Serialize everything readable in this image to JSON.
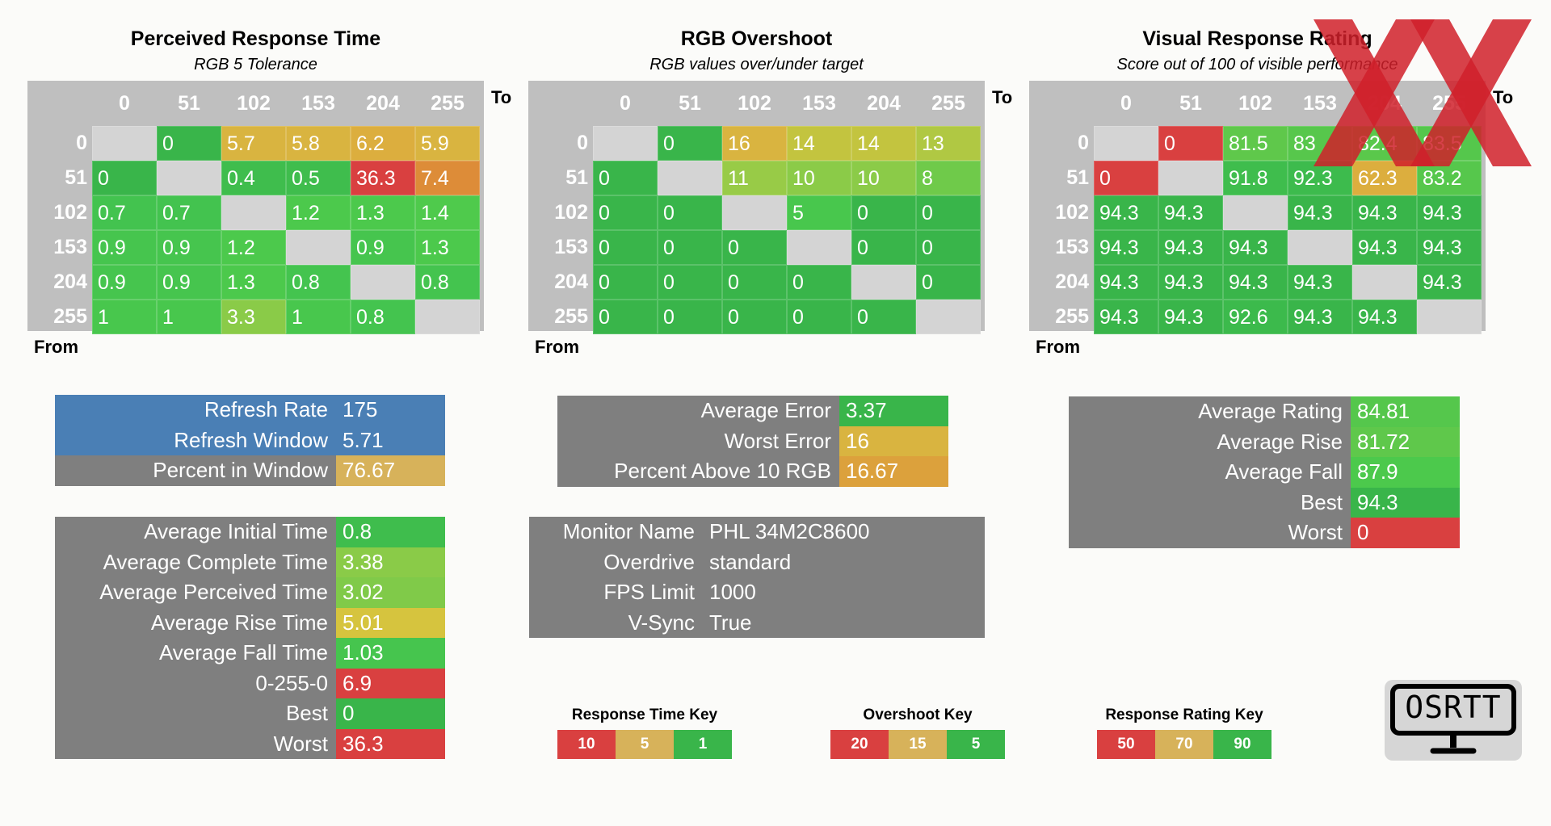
{
  "matrices": [
    {
      "title": "Perceived Response Time",
      "subtitle": "RGB 5 Tolerance",
      "to_label": "To",
      "from_label": "From",
      "headers": [
        "0",
        "51",
        "102",
        "153",
        "204",
        "255"
      ],
      "rows": [
        {
          "label": "0",
          "cells": [
            {
              "v": "",
              "c": "#d4d4d4"
            },
            {
              "v": "0",
              "c": "#39b54a"
            },
            {
              "v": "5.7",
              "c": "#d9b440"
            },
            {
              "v": "5.8",
              "c": "#d9b440"
            },
            {
              "v": "6.2",
              "c": "#dcae3e"
            },
            {
              "v": "5.9",
              "c": "#d9b440"
            }
          ]
        },
        {
          "label": "51",
          "cells": [
            {
              "v": "0",
              "c": "#39b54a"
            },
            {
              "v": "",
              "c": "#d4d4d4"
            },
            {
              "v": "0.4",
              "c": "#3fbd4d"
            },
            {
              "v": "0.5",
              "c": "#3fbd4d"
            },
            {
              "v": "36.3",
              "c": "#d94040"
            },
            {
              "v": "7.4",
              "c": "#dd8c38"
            }
          ]
        },
        {
          "label": "102",
          "cells": [
            {
              "v": "0.7",
              "c": "#43c34f"
            },
            {
              "v": "0.7",
              "c": "#43c34f"
            },
            {
              "v": "",
              "c": "#d4d4d4"
            },
            {
              "v": "1.2",
              "c": "#4cc94c"
            },
            {
              "v": "1.3",
              "c": "#4cc94c"
            },
            {
              "v": "1.4",
              "c": "#4fca4c"
            }
          ]
        },
        {
          "label": "153",
          "cells": [
            {
              "v": "0.9",
              "c": "#46c54e"
            },
            {
              "v": "0.9",
              "c": "#46c54e"
            },
            {
              "v": "1.2",
              "c": "#4cc94c"
            },
            {
              "v": "",
              "c": "#d4d4d4"
            },
            {
              "v": "0.9",
              "c": "#46c54e"
            },
            {
              "v": "1.3",
              "c": "#4cc94c"
            }
          ]
        },
        {
          "label": "204",
          "cells": [
            {
              "v": "0.9",
              "c": "#46c54e"
            },
            {
              "v": "0.9",
              "c": "#46c54e"
            },
            {
              "v": "1.3",
              "c": "#4cc94c"
            },
            {
              "v": "0.8",
              "c": "#44c44f"
            },
            {
              "v": "",
              "c": "#d4d4d4"
            },
            {
              "v": "0.8",
              "c": "#44c44f"
            }
          ]
        },
        {
          "label": "255",
          "cells": [
            {
              "v": "1",
              "c": "#48c74d"
            },
            {
              "v": "1",
              "c": "#48c74d"
            },
            {
              "v": "3.3",
              "c": "#8acb48"
            },
            {
              "v": "1",
              "c": "#48c74d"
            },
            {
              "v": "0.8",
              "c": "#44c44f"
            },
            {
              "v": "",
              "c": "#d4d4d4"
            }
          ]
        }
      ]
    },
    {
      "title": "RGB Overshoot",
      "subtitle": "RGB values over/under target",
      "to_label": "To",
      "from_label": "From",
      "headers": [
        "0",
        "51",
        "102",
        "153",
        "204",
        "255"
      ],
      "rows": [
        {
          "label": "0",
          "cells": [
            {
              "v": "",
              "c": "#d4d4d4"
            },
            {
              "v": "0",
              "c": "#39b54a"
            },
            {
              "v": "16",
              "c": "#d9b440"
            },
            {
              "v": "14",
              "c": "#c3c43f"
            },
            {
              "v": "14",
              "c": "#c3c43f"
            },
            {
              "v": "13",
              "c": "#b0c843"
            }
          ]
        },
        {
          "label": "51",
          "cells": [
            {
              "v": "0",
              "c": "#39b54a"
            },
            {
              "v": "",
              "c": "#d4d4d4"
            },
            {
              "v": "11",
              "c": "#98cb47"
            },
            {
              "v": "10",
              "c": "#8bcb48"
            },
            {
              "v": "10",
              "c": "#8bcb48"
            },
            {
              "v": "8",
              "c": "#6fca4a"
            }
          ]
        },
        {
          "label": "102",
          "cells": [
            {
              "v": "0",
              "c": "#39b54a"
            },
            {
              "v": "0",
              "c": "#39b54a"
            },
            {
              "v": "",
              "c": "#d4d4d4"
            },
            {
              "v": "5",
              "c": "#48c74d"
            },
            {
              "v": "0",
              "c": "#39b54a"
            },
            {
              "v": "0",
              "c": "#39b54a"
            }
          ]
        },
        {
          "label": "153",
          "cells": [
            {
              "v": "0",
              "c": "#39b54a"
            },
            {
              "v": "0",
              "c": "#39b54a"
            },
            {
              "v": "0",
              "c": "#39b54a"
            },
            {
              "v": "",
              "c": "#d4d4d4"
            },
            {
              "v": "0",
              "c": "#39b54a"
            },
            {
              "v": "0",
              "c": "#39b54a"
            }
          ]
        },
        {
          "label": "204",
          "cells": [
            {
              "v": "0",
              "c": "#39b54a"
            },
            {
              "v": "0",
              "c": "#39b54a"
            },
            {
              "v": "0",
              "c": "#39b54a"
            },
            {
              "v": "0",
              "c": "#39b54a"
            },
            {
              "v": "",
              "c": "#d4d4d4"
            },
            {
              "v": "0",
              "c": "#39b54a"
            }
          ]
        },
        {
          "label": "255",
          "cells": [
            {
              "v": "0",
              "c": "#39b54a"
            },
            {
              "v": "0",
              "c": "#39b54a"
            },
            {
              "v": "0",
              "c": "#39b54a"
            },
            {
              "v": "0",
              "c": "#39b54a"
            },
            {
              "v": "0",
              "c": "#39b54a"
            },
            {
              "v": "",
              "c": "#d4d4d4"
            }
          ]
        }
      ]
    },
    {
      "title": "Visual Response Rating",
      "subtitle": "Score out of 100 of visible performance",
      "to_label": "To",
      "from_label": "From",
      "headers": [
        "0",
        "51",
        "102",
        "153",
        "204",
        "255"
      ],
      "rows": [
        {
          "label": "0",
          "cells": [
            {
              "v": "",
              "c": "#d4d4d4"
            },
            {
              "v": "0",
              "c": "#d94040"
            },
            {
              "v": "81.5",
              "c": "#5fc84b"
            },
            {
              "v": "83",
              "c": "#57c74c"
            },
            {
              "v": "82.4",
              "c": "#5ac84b"
            },
            {
              "v": "83.5",
              "c": "#55c74c"
            }
          ]
        },
        {
          "label": "51",
          "cells": [
            {
              "v": "0",
              "c": "#d94040"
            },
            {
              "v": "",
              "c": "#d4d4d4"
            },
            {
              "v": "91.8",
              "c": "#3fbd4d"
            },
            {
              "v": "92.3",
              "c": "#3dbb4d"
            },
            {
              "v": "62.3",
              "c": "#dcae3e"
            },
            {
              "v": "83.2",
              "c": "#56c74c"
            }
          ]
        },
        {
          "label": "102",
          "cells": [
            {
              "v": "94.3",
              "c": "#39b54a"
            },
            {
              "v": "94.3",
              "c": "#39b54a"
            },
            {
              "v": "",
              "c": "#d4d4d4"
            },
            {
              "v": "94.3",
              "c": "#39b54a"
            },
            {
              "v": "94.3",
              "c": "#39b54a"
            },
            {
              "v": "94.3",
              "c": "#39b54a"
            }
          ]
        },
        {
          "label": "153",
          "cells": [
            {
              "v": "94.3",
              "c": "#39b54a"
            },
            {
              "v": "94.3",
              "c": "#39b54a"
            },
            {
              "v": "94.3",
              "c": "#39b54a"
            },
            {
              "v": "",
              "c": "#d4d4d4"
            },
            {
              "v": "94.3",
              "c": "#39b54a"
            },
            {
              "v": "94.3",
              "c": "#39b54a"
            }
          ]
        },
        {
          "label": "204",
          "cells": [
            {
              "v": "94.3",
              "c": "#39b54a"
            },
            {
              "v": "94.3",
              "c": "#39b54a"
            },
            {
              "v": "94.3",
              "c": "#39b54a"
            },
            {
              "v": "94.3",
              "c": "#39b54a"
            },
            {
              "v": "",
              "c": "#d4d4d4"
            },
            {
              "v": "94.3",
              "c": "#39b54a"
            }
          ]
        },
        {
          "label": "255",
          "cells": [
            {
              "v": "94.3",
              "c": "#39b54a"
            },
            {
              "v": "94.3",
              "c": "#39b54a"
            },
            {
              "v": "92.6",
              "c": "#3cba4c"
            },
            {
              "v": "94.3",
              "c": "#39b54a"
            },
            {
              "v": "94.3",
              "c": "#39b54a"
            },
            {
              "v": "",
              "c": "#d4d4d4"
            }
          ]
        }
      ]
    }
  ],
  "refresh_panel": [
    {
      "label": "Refresh Rate",
      "value": "175",
      "label_bg": "#4a7fb5",
      "value_bg": "#4a7fb5"
    },
    {
      "label": "Refresh Window",
      "value": "5.71",
      "label_bg": "#4a7fb5",
      "value_bg": "#4a7fb5"
    },
    {
      "label": "Percent in Window",
      "value": "76.67",
      "label_bg": "#7f7f7f",
      "value_bg": "#d7b25a"
    }
  ],
  "time_panel": [
    {
      "label": "Average Initial Time",
      "value": "0.8",
      "value_bg": "#3fbd4d"
    },
    {
      "label": "Average Complete Time",
      "value": "3.38",
      "value_bg": "#8acb48"
    },
    {
      "label": "Average Perceived Time",
      "value": "3.02",
      "value_bg": "#80ca49"
    },
    {
      "label": "Average Rise Time",
      "value": "5.01",
      "value_bg": "#d6c43e"
    },
    {
      "label": "Average Fall Time",
      "value": "1.03",
      "value_bg": "#46c54e"
    },
    {
      "label": "0-255-0",
      "value": "6.9",
      "value_bg": "#d94040"
    },
    {
      "label": "Best",
      "value": "0",
      "value_bg": "#39b54a"
    },
    {
      "label": "Worst",
      "value": "36.3",
      "value_bg": "#d94040"
    }
  ],
  "error_panel": [
    {
      "label": "Average Error",
      "value": "3.37",
      "value_bg": "#39b54a"
    },
    {
      "label": "Worst Error",
      "value": "16",
      "value_bg": "#d9b440"
    },
    {
      "label": "Percent Above 10 RGB",
      "value": "16.67",
      "value_bg": "#dca13c"
    }
  ],
  "monitor_panel": [
    {
      "label": "Monitor Name",
      "value": "PHL 34M2C8600"
    },
    {
      "label": "Overdrive",
      "value": "standard"
    },
    {
      "label": "FPS Limit",
      "value": "1000"
    },
    {
      "label": "V-Sync",
      "value": "True"
    }
  ],
  "rating_panel": [
    {
      "label": "Average Rating",
      "value": "84.81",
      "value_bg": "#55c74c"
    },
    {
      "label": "Average Rise",
      "value": "81.72",
      "value_bg": "#5fc84b"
    },
    {
      "label": "Average Fall",
      "value": "87.9",
      "value_bg": "#4cc94c"
    },
    {
      "label": "Best",
      "value": "94.3",
      "value_bg": "#39b54a"
    },
    {
      "label": "Worst",
      "value": "0",
      "value_bg": "#d94040"
    }
  ],
  "keys": [
    {
      "title": "Response Time Key",
      "cells": [
        {
          "v": "10",
          "c": "#d94040"
        },
        {
          "v": "5",
          "c": "#d7b25a"
        },
        {
          "v": "1",
          "c": "#39b54a"
        }
      ]
    },
    {
      "title": "Overshoot Key",
      "cells": [
        {
          "v": "20",
          "c": "#d94040"
        },
        {
          "v": "15",
          "c": "#d7b25a"
        },
        {
          "v": "5",
          "c": "#39b54a"
        }
      ]
    },
    {
      "title": "Response Rating Key",
      "cells": [
        {
          "v": "50",
          "c": "#d94040"
        },
        {
          "v": "70",
          "c": "#d7b25a"
        },
        {
          "v": "90",
          "c": "#39b54a"
        }
      ]
    }
  ],
  "logo": {
    "text": "OSRTT",
    "icon": "monitor-icon"
  },
  "watermark": {
    "icon": "xx-logo-icon",
    "color": "#d0202a"
  }
}
